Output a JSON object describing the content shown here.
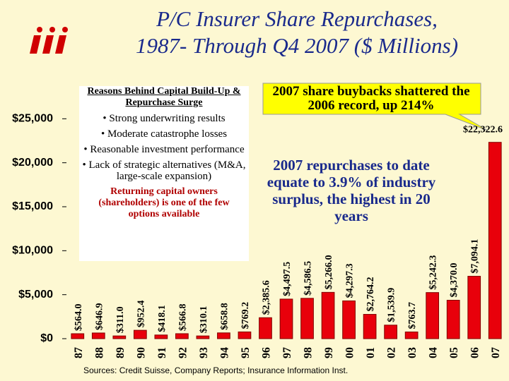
{
  "chart_data": {
    "type": "bar",
    "title": [
      "P/C Insurer Share Repurchases,",
      "1987- Through Q4 2007 ($ Millions)"
    ],
    "categories": [
      "87",
      "88",
      "89",
      "90",
      "91",
      "92",
      "93",
      "94",
      "95",
      "96",
      "97",
      "98",
      "99",
      "00",
      "01",
      "02",
      "03",
      "04",
      "05",
      "06",
      "07"
    ],
    "values": [
      564.0,
      646.9,
      311.0,
      952.4,
      418.1,
      566.8,
      310.1,
      658.8,
      769.2,
      2385.6,
      4497.5,
      4586.5,
      5266.0,
      4297.3,
      2764.2,
      1539.9,
      763.7,
      5242.3,
      4370.0,
      7094.1,
      22322.6
    ],
    "value_labels": [
      "$564.0",
      "$646.9",
      "$311.0",
      "$952.4",
      "$418.1",
      "$566.8",
      "$310.1",
      "$658.8",
      "$769.2",
      "$2,385.6",
      "$4,497.5",
      "$4,586.5",
      "$5,266.0",
      "$4,297.3",
      "$2,764.2",
      "$1,539.9",
      "$763.7",
      "$5,242.3",
      "$4,370.0",
      "$7,094.1",
      "$22,322.6"
    ],
    "color": "#e8000b",
    "ylim": [
      0,
      30000
    ],
    "yticks": [
      {
        "value": 0,
        "label": "$0"
      },
      {
        "value": 5000,
        "label": "$5,000"
      },
      {
        "value": 10000,
        "label": "$10,000"
      },
      {
        "value": 15000,
        "label": "$15,000"
      },
      {
        "value": 20000,
        "label": "$20,000"
      },
      {
        "value": 25000,
        "label": "$25,000"
      }
    ],
    "box_heading": "Reasons Behind Capital Build-Up & Repurchase Surge",
    "bullets": [
      "• Strong underwriting results",
      "• Moderate catastrophe losses",
      "• Reasonable investment performance",
      "• Lack of strategic alternatives (M&A, large-scale expansion)"
    ],
    "box_footer": "Returning capital owners (shareholders) is one of the few options available",
    "callout": "2007 share buybacks shattered the 2006 record, up 214%",
    "note": "2007 repurchases to date equate to 3.9% of industry surplus, the highest in 20 years",
    "source": "Sources: Credit Suisse, Company Reports; Insurance Information Inst."
  }
}
